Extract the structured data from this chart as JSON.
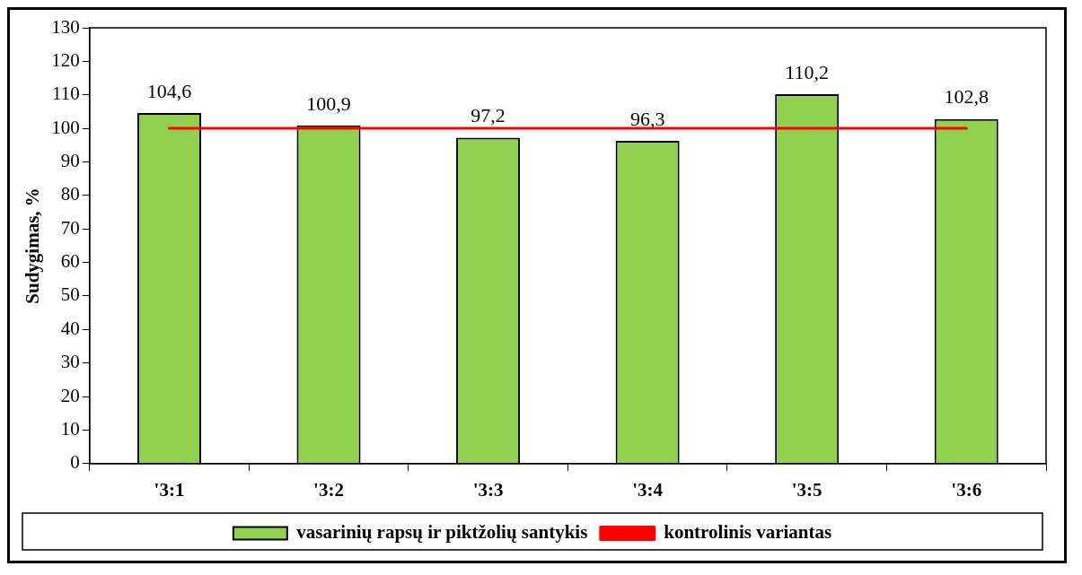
{
  "chart_data": {
    "type": "bar",
    "ylabel": "Sudygimas, %",
    "categories": [
      "'3:1",
      "'3:2",
      "'3:3",
      "'3:4",
      "'3:5",
      "'3:6"
    ],
    "series": [
      {
        "name": "vasarinių rapsų ir piktžolių santykis",
        "color": "#92d050",
        "values": [
          104.6,
          100.9,
          97.2,
          96.3,
          110.2,
          102.8
        ],
        "value_labels": [
          "104,6",
          "100,9",
          "97,2",
          "96,3",
          "110,2",
          "102,8"
        ]
      },
      {
        "name": "kontrolinis variantas",
        "type": "line",
        "color": "#ff0000",
        "values": [
          100,
          100,
          100,
          100,
          100,
          100
        ],
        "marker": "none"
      }
    ],
    "ylim": [
      0,
      130
    ],
    "yticks": [
      0,
      10,
      20,
      30,
      40,
      50,
      60,
      70,
      80,
      90,
      100,
      110,
      120,
      130
    ],
    "grid": false,
    "legend": "bottom"
  }
}
